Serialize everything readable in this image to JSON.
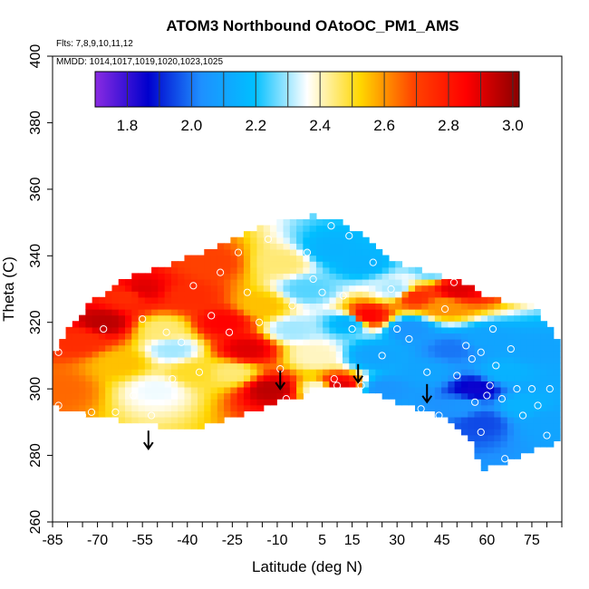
{
  "chart_data": {
    "type": "heatmap",
    "title": "ATOM3 Northbound OAtoOC_PM1_AMS",
    "flights_label": "Flts: 7,8,9,10,11,12",
    "dates_label": "MMDD: 1014,1017,1019,1020,1023,1025",
    "xlabel": "Latitude (deg N)",
    "ylabel": "Theta (C)",
    "xlim": [
      -85,
      85
    ],
    "ylim": [
      260,
      400
    ],
    "x_ticks": [
      -85,
      -70,
      -55,
      -40,
      -25,
      -10,
      5,
      15,
      30,
      45,
      60,
      75
    ],
    "y_ticks": [
      260,
      280,
      300,
      320,
      340,
      360,
      380,
      400
    ],
    "colorbar": {
      "range": [
        1.7,
        3.02
      ],
      "ticks": [
        1.8,
        2.0,
        2.2,
        2.4,
        2.6,
        2.8,
        3.0
      ],
      "colors": [
        "#8a2be2",
        "#0000cd",
        "#1e90ff",
        "#00bfff",
        "#ffffff",
        "#ffd700",
        "#ff4500",
        "#ff0000",
        "#8b0000"
      ]
    },
    "field": [
      {
        "lat": -83,
        "theta": 300,
        "value": 2.65
      },
      {
        "lat": -75,
        "theta": 315,
        "value": 2.75
      },
      {
        "lat": -68,
        "theta": 320,
        "value": 2.95
      },
      {
        "lat": -62,
        "theta": 308,
        "value": 2.55
      },
      {
        "lat": -60,
        "theta": 328,
        "value": 2.75
      },
      {
        "lat": -55,
        "theta": 330,
        "value": 2.9
      },
      {
        "lat": -50,
        "theta": 300,
        "value": 2.35
      },
      {
        "lat": -48,
        "theta": 318,
        "value": 2.45
      },
      {
        "lat": -45,
        "theta": 312,
        "value": 2.3
      },
      {
        "lat": -40,
        "theta": 328,
        "value": 2.75
      },
      {
        "lat": -38,
        "theta": 305,
        "value": 2.5
      },
      {
        "lat": -32,
        "theta": 338,
        "value": 2.7
      },
      {
        "lat": -28,
        "theta": 320,
        "value": 2.85
      },
      {
        "lat": -25,
        "theta": 305,
        "value": 2.45
      },
      {
        "lat": -20,
        "theta": 312,
        "value": 2.9
      },
      {
        "lat": -15,
        "theta": 325,
        "value": 2.55
      },
      {
        "lat": -12,
        "theta": 300,
        "value": 2.95
      },
      {
        "lat": -8,
        "theta": 338,
        "value": 2.45
      },
      {
        "lat": -5,
        "theta": 318,
        "value": 2.3
      },
      {
        "lat": 0,
        "theta": 330,
        "value": 2.25
      },
      {
        "lat": 3,
        "theta": 310,
        "value": 2.4
      },
      {
        "lat": 5,
        "theta": 300,
        "value": 2.35
      },
      {
        "lat": 8,
        "theta": 342,
        "value": 2.15
      },
      {
        "lat": 10,
        "theta": 301,
        "value": 2.9
      },
      {
        "lat": 14,
        "theta": 320,
        "value": 2.15
      },
      {
        "lat": 18,
        "theta": 338,
        "value": 2.15
      },
      {
        "lat": 20,
        "theta": 322,
        "value": 2.85
      },
      {
        "lat": 22,
        "theta": 310,
        "value": 2.1
      },
      {
        "lat": 26,
        "theta": 300,
        "value": 2.05
      },
      {
        "lat": 30,
        "theta": 330,
        "value": 2.3
      },
      {
        "lat": 34,
        "theta": 318,
        "value": 2.05
      },
      {
        "lat": 36,
        "theta": 328,
        "value": 2.75
      },
      {
        "lat": 40,
        "theta": 305,
        "value": 2.1
      },
      {
        "lat": 42,
        "theta": 336,
        "value": 2.25
      },
      {
        "lat": 46,
        "theta": 325,
        "value": 2.6
      },
      {
        "lat": 48,
        "theta": 312,
        "value": 2.0
      },
      {
        "lat": 50,
        "theta": 330,
        "value": 2.9
      },
      {
        "lat": 52,
        "theta": 295,
        "value": 2.05
      },
      {
        "lat": 56,
        "theta": 300,
        "value": 1.85
      },
      {
        "lat": 58,
        "theta": 290,
        "value": 1.95
      },
      {
        "lat": 60,
        "theta": 315,
        "value": 2.1
      },
      {
        "lat": 66,
        "theta": 305,
        "value": 2.15
      },
      {
        "lat": 72,
        "theta": 295,
        "value": 2.15
      },
      {
        "lat": 76,
        "theta": 312,
        "value": 2.1
      },
      {
        "lat": 80,
        "theta": 290,
        "value": 2.1
      }
    ],
    "sample_points": [
      {
        "lat": -83,
        "theta": 311
      },
      {
        "lat": -83,
        "theta": 295
      },
      {
        "lat": -75,
        "theta": 292
      },
      {
        "lat": -72,
        "theta": 293
      },
      {
        "lat": -64,
        "theta": 293
      },
      {
        "lat": -68,
        "theta": 318
      },
      {
        "lat": -58,
        "theta": 298
      },
      {
        "lat": -55,
        "theta": 321
      },
      {
        "lat": -52,
        "theta": 292
      },
      {
        "lat": -47,
        "theta": 317
      },
      {
        "lat": -45,
        "theta": 303
      },
      {
        "lat": -42,
        "theta": 314
      },
      {
        "lat": -38,
        "theta": 331
      },
      {
        "lat": -36,
        "theta": 305
      },
      {
        "lat": -32,
        "theta": 322
      },
      {
        "lat": -29,
        "theta": 335
      },
      {
        "lat": -26,
        "theta": 317
      },
      {
        "lat": -23,
        "theta": 341
      },
      {
        "lat": -20,
        "theta": 329
      },
      {
        "lat": -16,
        "theta": 320
      },
      {
        "lat": -13,
        "theta": 345
      },
      {
        "lat": -9,
        "theta": 306
      },
      {
        "lat": -7,
        "theta": 297
      },
      {
        "lat": -5,
        "theta": 325
      },
      {
        "lat": 0,
        "theta": 341
      },
      {
        "lat": 2,
        "theta": 333
      },
      {
        "lat": 5,
        "theta": 329
      },
      {
        "lat": 8,
        "theta": 349
      },
      {
        "lat": 9,
        "theta": 303
      },
      {
        "lat": 10,
        "theta": 301
      },
      {
        "lat": 12,
        "theta": 328
      },
      {
        "lat": 14,
        "theta": 346
      },
      {
        "lat": 15,
        "theta": 318
      },
      {
        "lat": 18,
        "theta": 301
      },
      {
        "lat": 22,
        "theta": 338
      },
      {
        "lat": 25,
        "theta": 310
      },
      {
        "lat": 28,
        "theta": 330
      },
      {
        "lat": 30,
        "theta": 318
      },
      {
        "lat": 34,
        "theta": 315
      },
      {
        "lat": 38,
        "theta": 294
      },
      {
        "lat": 40,
        "theta": 305
      },
      {
        "lat": 44,
        "theta": 292
      },
      {
        "lat": 46,
        "theta": 324
      },
      {
        "lat": 49,
        "theta": 332
      },
      {
        "lat": 50,
        "theta": 304
      },
      {
        "lat": 53,
        "theta": 313
      },
      {
        "lat": 55,
        "theta": 309
      },
      {
        "lat": 56,
        "theta": 296
      },
      {
        "lat": 58,
        "theta": 311
      },
      {
        "lat": 60,
        "theta": 298
      },
      {
        "lat": 61,
        "theta": 301
      },
      {
        "lat": 62,
        "theta": 318
      },
      {
        "lat": 63,
        "theta": 307
      },
      {
        "lat": 65,
        "theta": 297
      },
      {
        "lat": 66,
        "theta": 279
      },
      {
        "lat": 68,
        "theta": 312
      },
      {
        "lat": 70,
        "theta": 300
      },
      {
        "lat": 72,
        "theta": 292
      },
      {
        "lat": 75,
        "theta": 300
      },
      {
        "lat": 77,
        "theta": 295
      },
      {
        "lat": 80,
        "theta": 286
      },
      {
        "lat": 81,
        "theta": 300
      },
      {
        "lat": 58,
        "theta": 287
      }
    ],
    "arrows": [
      {
        "lat": -53,
        "theta": 282
      },
      {
        "lat": -9,
        "theta": 300
      },
      {
        "lat": 17,
        "theta": 302
      },
      {
        "lat": 40,
        "theta": 296
      }
    ]
  }
}
